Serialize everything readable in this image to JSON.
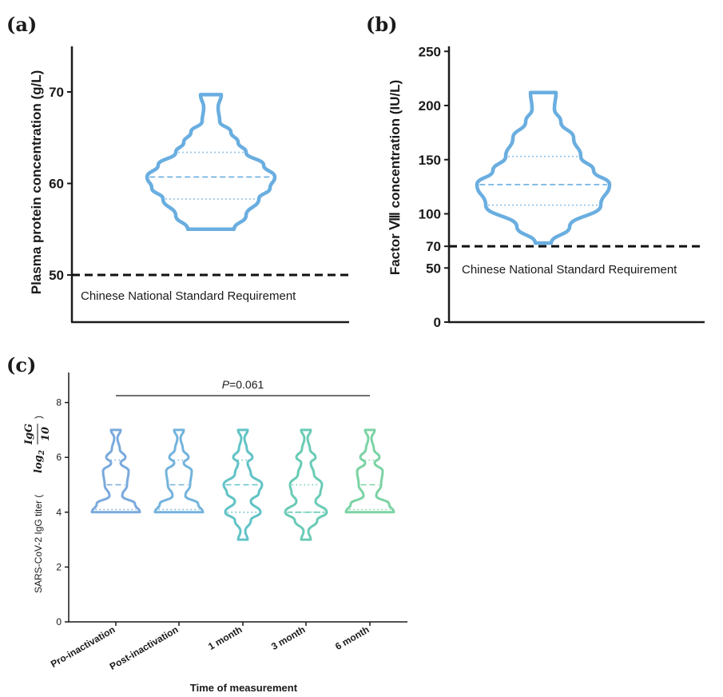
{
  "chart_data": [
    {
      "panel": "(a)",
      "type": "violin",
      "ylabel": "Plasma protein concentration (g/L)",
      "yticks": [
        50,
        60,
        70
      ],
      "ylim": [
        45,
        75
      ],
      "color": "#6aaee0",
      "violin": {
        "min": 55,
        "max": 69.7,
        "median": 60.7,
        "q1": 58.3,
        "q3": 63.4
      },
      "reference_line": {
        "value": 50,
        "label": "Chinese National Standard Requirement"
      }
    },
    {
      "panel": "(b)",
      "type": "violin",
      "ylabel": "Factor Ⅷ concentration (IU/L)",
      "yticks": [
        0,
        50,
        70,
        100,
        150,
        200,
        250
      ],
      "ylim": [
        0,
        250
      ],
      "color": "#6aaee0",
      "violin": {
        "min": 73,
        "max": 212,
        "median": 127,
        "q1": 108,
        "q3": 153
      },
      "reference_line": {
        "value": 70,
        "label": "Chinese National Standard Requirement"
      }
    },
    {
      "panel": "(c)",
      "type": "violin",
      "xlabel": "Time of measurement",
      "ylabel": "SARS-CoV-2 IgG titer (",
      "ylabel_math": {
        "log": "log",
        "sub": "2",
        "numerator": "IgG",
        "denominator": "10",
        "close": ")"
      },
      "yticks": [
        0,
        2,
        4,
        6,
        8
      ],
      "ylim": [
        0,
        9
      ],
      "categories": [
        "Pro-inactivation",
        "Post-inactivation",
        "1 month",
        "3 month",
        "6 month"
      ],
      "colors": [
        "#7aa9dd",
        "#73b3dc",
        "#62c3c6",
        "#6acbb5",
        "#7bd3a4"
      ],
      "violins": [
        {
          "min": 4,
          "max": 7,
          "median": 5,
          "q1": 4.1,
          "q3": 5.9
        },
        {
          "min": 4,
          "max": 7,
          "median": 5,
          "q1": 4.1,
          "q3": 5.9
        },
        {
          "min": 3,
          "max": 7,
          "median": 5,
          "q1": 4,
          "q3": 5.9
        },
        {
          "min": 3,
          "max": 7,
          "median": 4,
          "q1": 4,
          "q3": 5
        },
        {
          "min": 4,
          "max": 7,
          "median": 5,
          "q1": 4.1,
          "q3": 5.9
        }
      ],
      "annotation": {
        "prefix": "P",
        "text": "=0.061"
      }
    }
  ]
}
